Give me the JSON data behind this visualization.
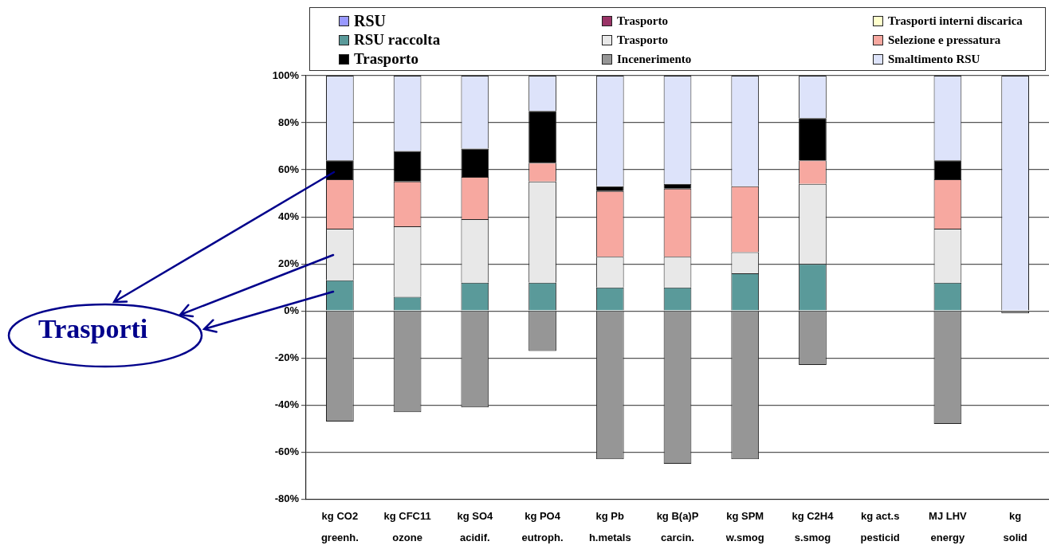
{
  "chart_data": {
    "type": "bar",
    "stacked": true,
    "categories": [
      "kg CO2\ngreenh.",
      "kg CFC11\nozone",
      "kg SO4\nacidif.",
      "kg PO4\neutroph.",
      "kg Pb\nh.metals",
      "kg B(a)P\ncarcin.",
      "kg SPM\nw.smog",
      "kg C2H4\ns.smog",
      "kg act.s\npesticid",
      "MJ LHV\nenergy",
      "kg\nsolid"
    ],
    "series": [
      {
        "name": "Incenerimento",
        "color": "#969696",
        "values": [
          -47,
          -43,
          -41,
          -17,
          -63,
          -65,
          -63,
          -23,
          null,
          -48,
          -1
        ]
      },
      {
        "name": "RSU raccolta",
        "color": "#5a9a9a",
        "values": [
          13,
          6,
          12,
          12,
          10,
          10,
          16,
          20,
          null,
          12,
          null
        ]
      },
      {
        "name": "Trasporto",
        "color": "#e8e8e8",
        "values": [
          22,
          30,
          27,
          43,
          13,
          13,
          9,
          34,
          null,
          23,
          null
        ]
      },
      {
        "name": "Selezione e pressatura",
        "color": "#f7a8a0",
        "values": [
          21,
          19,
          18,
          8,
          28,
          29,
          28,
          10,
          null,
          21,
          null
        ]
      },
      {
        "name": "Trasporto",
        "color": "#000000",
        "values": [
          8,
          13,
          12,
          22,
          2,
          2,
          null,
          18,
          null,
          8,
          null
        ]
      },
      {
        "name": "Smaltimento RSU",
        "color": "#dde3fa",
        "values": [
          36,
          32,
          31,
          15,
          47,
          46,
          47,
          18,
          null,
          36,
          100
        ]
      },
      {
        "name": "RSU",
        "color": "#9999ff",
        "values": [
          null,
          null,
          null,
          null,
          null,
          null,
          null,
          null,
          null,
          null,
          null
        ]
      },
      {
        "name": "Trasporto",
        "color": "#993366",
        "values": [
          null,
          null,
          null,
          null,
          null,
          null,
          null,
          null,
          null,
          null,
          null
        ]
      },
      {
        "name": "Trasporti interni discarica",
        "color": "#ffffcc",
        "values": [
          null,
          null,
          null,
          null,
          null,
          null,
          null,
          null,
          null,
          null,
          null
        ]
      }
    ],
    "ylim": [
      -80,
      100
    ],
    "yticks": [
      {
        "value": -80,
        "label": "-80%"
      },
      {
        "value": -60,
        "label": "-60%"
      },
      {
        "value": -40,
        "label": "-40%"
      },
      {
        "value": -20,
        "label": "-20%"
      },
      {
        "value": 0,
        "label": "0%"
      },
      {
        "value": 20,
        "label": "20%"
      },
      {
        "value": 40,
        "label": "40%"
      },
      {
        "value": 60,
        "label": "60%"
      },
      {
        "value": 80,
        "label": "80%"
      },
      {
        "value": 100,
        "label": "100%"
      }
    ],
    "grid": "y",
    "legend": "top",
    "annotations": [
      "Trasporti"
    ]
  }
}
